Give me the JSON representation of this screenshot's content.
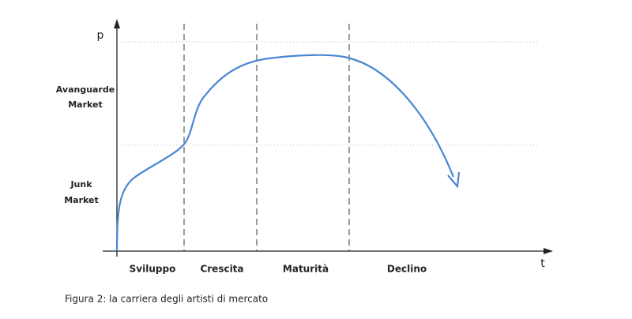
{
  "axes": {
    "y_label": "p",
    "x_label": "t"
  },
  "levels": [
    {
      "lines": [
        "Avanguarde",
        "Market"
      ]
    },
    {
      "lines": [
        "Junk",
        "Market"
      ]
    }
  ],
  "phases": [
    "Sviluppo",
    "Crescita",
    "Maturità",
    "Declino"
  ],
  "caption": "Figura 2: la carriera degli artisti di mercato"
}
